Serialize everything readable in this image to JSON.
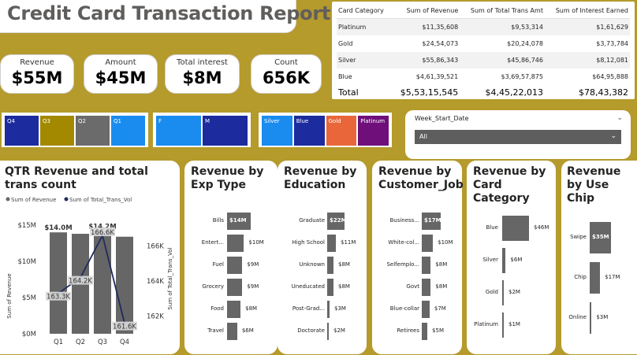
{
  "title": "Credit Card Transaction Report",
  "kpis": [
    {
      "label": "Revenue",
      "value": "$55M"
    },
    {
      "label": "Amount",
      "value": "$45M"
    },
    {
      "label": "Total interest",
      "value": "$8M"
    },
    {
      "label": "Count",
      "value": "656K"
    }
  ],
  "summary_table": {
    "headers": [
      "Card Category",
      "Sum of Revenue",
      "Sum of Total Trans Amt",
      "Sum of Interest Earned"
    ],
    "rows": [
      [
        "Platinum",
        "$11,35,608",
        "$9,53,314",
        "$1,61,629"
      ],
      [
        "Gold",
        "$24,54,073",
        "$20,24,078",
        "$3,73,784"
      ],
      [
        "Silver",
        "$55,86,343",
        "$45,86,746",
        "$8,12,081"
      ],
      [
        "Blue",
        "$4,61,39,521",
        "$3,69,57,875",
        "$64,95,888"
      ]
    ],
    "total": [
      "Total",
      "$5,53,15,545",
      "$4,45,22,013",
      "$78,43,382"
    ]
  },
  "slicers": {
    "quarter": [
      {
        "label": "Q4",
        "color": "#1c2b9e"
      },
      {
        "label": "Q3",
        "color": "#a38900"
      },
      {
        "label": "Q2",
        "color": "#6b6b6b"
      },
      {
        "label": "Q1",
        "color": "#1a8cf0"
      }
    ],
    "gender": [
      {
        "label": "F",
        "color": "#1a8cf0"
      },
      {
        "label": "M",
        "color": "#1c2b9e"
      }
    ],
    "card": [
      {
        "label": "Silver",
        "color": "#1a8cf0"
      },
      {
        "label": "Blue",
        "color": "#1c2b9e"
      },
      {
        "label": "Gold",
        "color": "#e8663a"
      },
      {
        "label": "Platinum",
        "color": "#6e0f7a"
      }
    ]
  },
  "week_filter": {
    "label": "Week_Start_Date",
    "value": "All"
  },
  "chart_data": [
    {
      "type": "bar",
      "title": "QTR Revenue and total trans count",
      "legend": [
        "Sum of Revenue",
        "Sum of Total_Trans_Vol"
      ],
      "categories": [
        "Q1",
        "Q2",
        "Q3",
        "Q4"
      ],
      "series": [
        {
          "name": "Sum of Revenue",
          "values": [
            14.0,
            13.8,
            14.2,
            13.4
          ],
          "labels": [
            "$14.0M",
            "",
            "$14.2M",
            ""
          ]
        },
        {
          "name": "Sum of Total_Trans_Vol",
          "values": [
            163.3,
            164.2,
            166.6,
            161.6
          ],
          "labels": [
            "163.3K",
            "164.2K",
            "166.6K",
            "161.6K"
          ]
        }
      ],
      "ylabel": "Sum of Revenue",
      "y2label": "Sum of Total_Trans_Vol",
      "ylim": [
        0,
        15
      ],
      "y2lim": [
        161,
        167
      ],
      "yticks": [
        "$0M",
        "$5M",
        "$10M",
        "$15M"
      ],
      "y2ticks": [
        "162K",
        "164K",
        "166K"
      ]
    },
    {
      "type": "bar",
      "title": "Revenue by Exp Type",
      "categories": [
        "Bills",
        "Entert...",
        "Fuel",
        "Grocery",
        "Food",
        "Travel"
      ],
      "values": [
        14,
        10,
        9,
        9,
        8,
        6
      ],
      "labels": [
        "$14M",
        "$10M",
        "$9M",
        "$9M",
        "$8M",
        "$6M"
      ]
    },
    {
      "type": "bar",
      "title": "Revenue by Education",
      "categories": [
        "Graduate",
        "High School",
        "Unknown",
        "Uneducated",
        "Post-Grad...",
        "Doctorate"
      ],
      "values": [
        22,
        11,
        8,
        8,
        3,
        2
      ],
      "labels": [
        "$22M",
        "$11M",
        "$8M",
        "$8M",
        "$3M",
        "$2M"
      ]
    },
    {
      "type": "bar",
      "title": "Revenue by Customer_Job",
      "categories": [
        "Business...",
        "White-col...",
        "Selfemplo...",
        "Govt",
        "Blue-collar",
        "Retirees"
      ],
      "values": [
        17,
        10,
        8,
        8,
        7,
        5
      ],
      "labels": [
        "$17M",
        "$10M",
        "$8M",
        "$8M",
        "$7M",
        "$5M"
      ]
    },
    {
      "type": "bar",
      "title": "Revenue by Card Category",
      "categories": [
        "Blue",
        "Silver",
        "Gold",
        "Platinum"
      ],
      "values": [
        46,
        6,
        2,
        1
      ],
      "labels": [
        "$46M",
        "$6M",
        "$2M",
        "$1M"
      ]
    },
    {
      "type": "bar",
      "title": "Revenue by Use Chip",
      "categories": [
        "Swipe",
        "Chip",
        "Online"
      ],
      "values": [
        35,
        17,
        3
      ],
      "labels": [
        "$35M",
        "$17M",
        "$3M"
      ]
    }
  ]
}
